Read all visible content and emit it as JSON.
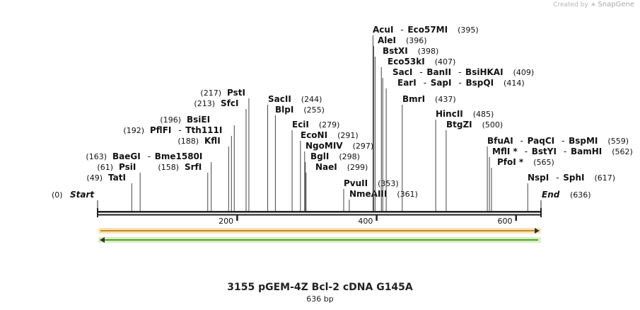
{
  "branding": {
    "created_by": "Created by",
    "product": "SnapGene"
  },
  "map": {
    "title": "3155 pGEM-4Z Bcl-2 cDNA G145A",
    "length_label": "636 bp",
    "total_bp": 636,
    "start": {
      "label": "Start",
      "pos_label": "(0)"
    },
    "end": {
      "label": "End",
      "pos_label": "(636)"
    },
    "ticks": [
      {
        "bp": 200,
        "label": "200"
      },
      {
        "bp": 400,
        "label": "400"
      },
      {
        "bp": 600,
        "label": "600"
      }
    ],
    "features": [
      {
        "name": "forward-feature",
        "direction": "forward",
        "start_bp": 0,
        "end_bp": 636,
        "color": "#f5a623",
        "fill": "#fde3b4"
      },
      {
        "name": "reverse-feature",
        "direction": "reverse",
        "start_bp": 0,
        "end_bp": 636,
        "color": "#6abf2f",
        "fill": "#d6f0c2"
      }
    ],
    "sites": [
      {
        "bp": 49,
        "names": [
          "TatI"
        ],
        "pos_label": "(49)",
        "pos_side": "left"
      },
      {
        "bp": 61,
        "names": [
          "PsiI"
        ],
        "pos_label": "(61)",
        "pos_side": "left"
      },
      {
        "bp": 163,
        "names": [
          "BaeGI",
          "Bme1580I"
        ],
        "pos_label": "(163)",
        "pos_side": "left"
      },
      {
        "bp": 158,
        "names": [
          "SrfI"
        ],
        "pos_label": "(158)",
        "pos_side": "left"
      },
      {
        "bp": 188,
        "names": [
          "KflI"
        ],
        "pos_label": "(188)",
        "pos_side": "left"
      },
      {
        "bp": 192,
        "names": [
          "PflFI",
          "Tth111I"
        ],
        "pos_label": "(192)",
        "pos_side": "left"
      },
      {
        "bp": 196,
        "names": [
          "BsiEI"
        ],
        "pos_label": "(196)",
        "pos_side": "left"
      },
      {
        "bp": 213,
        "names": [
          "SfcI"
        ],
        "pos_label": "(213)",
        "pos_side": "left"
      },
      {
        "bp": 217,
        "names": [
          "PstI"
        ],
        "pos_label": "(217)",
        "pos_side": "left"
      },
      {
        "bp": 244,
        "names": [
          "SacII"
        ],
        "pos_label": "(244)",
        "pos_side": "right"
      },
      {
        "bp": 255,
        "names": [
          "BlpI"
        ],
        "pos_label": "(255)",
        "pos_side": "right"
      },
      {
        "bp": 279,
        "names": [
          "EciI"
        ],
        "pos_label": "(279)",
        "pos_side": "right"
      },
      {
        "bp": 291,
        "names": [
          "EcoNI"
        ],
        "pos_label": "(291)",
        "pos_side": "right"
      },
      {
        "bp": 297,
        "names": [
          "NgoMIV"
        ],
        "pos_label": "(297)",
        "pos_side": "right"
      },
      {
        "bp": 298,
        "names": [
          "BglI"
        ],
        "pos_label": "(298)",
        "pos_side": "right"
      },
      {
        "bp": 299,
        "names": [
          "NaeI"
        ],
        "pos_label": "(299)",
        "pos_side": "right"
      },
      {
        "bp": 353,
        "names": [
          "PvuII"
        ],
        "pos_label": "(353)",
        "pos_side": "right"
      },
      {
        "bp": 361,
        "names": [
          "NmeAIII"
        ],
        "pos_label": "(361)",
        "pos_side": "right"
      },
      {
        "bp": 395,
        "names": [
          "AcuI",
          "Eco57MI"
        ],
        "pos_label": "(395)",
        "pos_side": "right"
      },
      {
        "bp": 396,
        "names": [
          "AleI"
        ],
        "pos_label": "(396)",
        "pos_side": "right"
      },
      {
        "bp": 398,
        "names": [
          "BstXI"
        ],
        "pos_label": "(398)",
        "pos_side": "right"
      },
      {
        "bp": 407,
        "names": [
          "Eco53kI"
        ],
        "pos_label": "(407)",
        "pos_side": "right"
      },
      {
        "bp": 409,
        "names": [
          "SacI",
          "BanII",
          "BsiHKAI"
        ],
        "pos_label": "(409)",
        "pos_side": "right"
      },
      {
        "bp": 414,
        "names": [
          "EarI",
          "SapI",
          "BspQI"
        ],
        "pos_label": "(414)",
        "pos_side": "right"
      },
      {
        "bp": 437,
        "names": [
          "BmrI"
        ],
        "pos_label": "(437)",
        "pos_side": "right"
      },
      {
        "bp": 485,
        "names": [
          "HincII"
        ],
        "pos_label": "(485)",
        "pos_side": "right"
      },
      {
        "bp": 500,
        "names": [
          "BtgZI"
        ],
        "pos_label": "(500)",
        "pos_side": "right"
      },
      {
        "bp": 559,
        "names": [
          "BfuAI",
          "PaqCI",
          "BspMI"
        ],
        "pos_label": "(559)",
        "pos_side": "right"
      },
      {
        "bp": 562,
        "names": [
          "MflI *",
          "BstYI",
          "BamHI"
        ],
        "pos_label": "(562)",
        "pos_side": "right"
      },
      {
        "bp": 565,
        "names": [
          "PfoI *"
        ],
        "pos_label": "(565)",
        "pos_side": "right"
      },
      {
        "bp": 617,
        "names": [
          "NspI",
          "SphI"
        ],
        "pos_label": "(617)",
        "pos_side": "right"
      }
    ]
  }
}
